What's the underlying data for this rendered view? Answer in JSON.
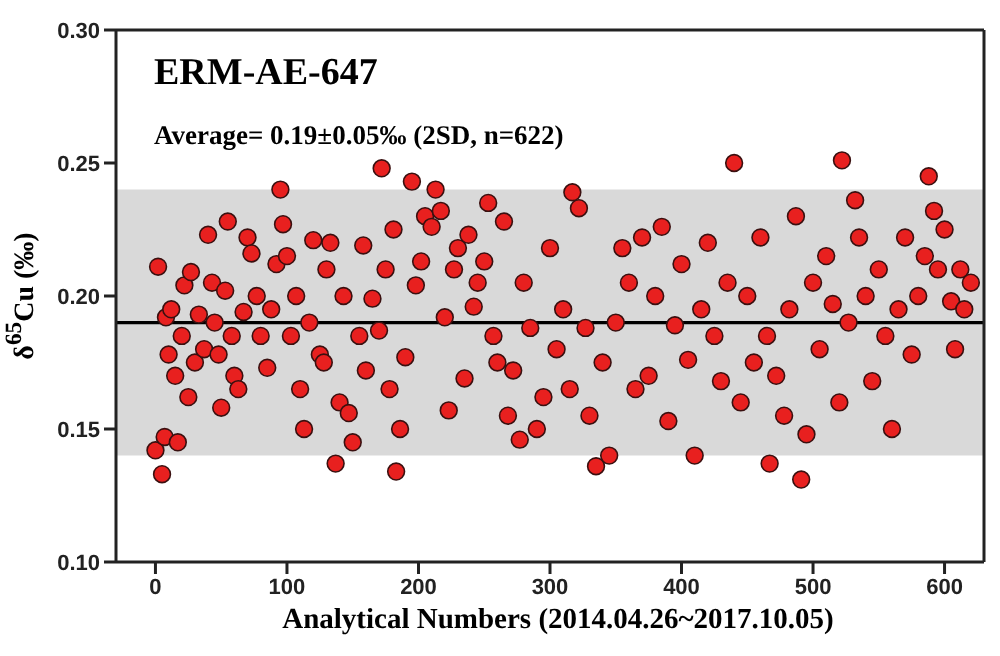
{
  "chart_data": {
    "type": "scatter",
    "annotations": [
      "ERM-AE-647",
      "Average= 0.19±0.05‰ (2SD, n=622)"
    ],
    "xlabel": "Analytical Numbers (2014.04.26~2017.10.05)",
    "ylabel": "δ$^{65}$Cu (‰)",
    "xlim": [
      -30,
      630
    ],
    "xticks": [
      0,
      100,
      200,
      300,
      400,
      500,
      600
    ],
    "ylim": [
      0.1,
      0.3
    ],
    "yticks": [
      {
        "value": 0.1,
        "label": "0.10"
      },
      {
        "value": 0.15,
        "label": "0.15"
      },
      {
        "value": 0.2,
        "label": "0.20"
      },
      {
        "value": 0.25,
        "label": "0.25"
      },
      {
        "value": 0.3,
        "label": "0.30"
      }
    ],
    "marker": "circle",
    "grid": false,
    "legend": false,
    "ref_lines": [
      {
        "axis": "y",
        "value": 0.19,
        "color": "#000000"
      }
    ],
    "bands": [
      {
        "axis": "y",
        "from": 0.14,
        "to": 0.24,
        "color": "#d9d9d9"
      }
    ],
    "series": [
      {
        "color": "#e8201f",
        "x": [
          0,
          2,
          5,
          7,
          8,
          10,
          12,
          15,
          17,
          20,
          22,
          25,
          27,
          30,
          33,
          37,
          40,
          43,
          45,
          48,
          50,
          53,
          55,
          58,
          60,
          63,
          67,
          70,
          73,
          77,
          80,
          85,
          88,
          92,
          95,
          97,
          100,
          103,
          107,
          110,
          113,
          117,
          120,
          125,
          128,
          130,
          133,
          137,
          140,
          143,
          147,
          150,
          155,
          158,
          160,
          165,
          170,
          172,
          175,
          178,
          181,
          183,
          186,
          190,
          195,
          198,
          202,
          205,
          210,
          213,
          217,
          220,
          223,
          227,
          230,
          235,
          238,
          242,
          245,
          250,
          253,
          257,
          260,
          265,
          268,
          272,
          277,
          280,
          285,
          290,
          295,
          300,
          305,
          310,
          315,
          317,
          322,
          327,
          330,
          335,
          340,
          345,
          350,
          355,
          360,
          365,
          370,
          375,
          380,
          385,
          390,
          395,
          400,
          405,
          410,
          415,
          420,
          425,
          430,
          435,
          440,
          445,
          450,
          455,
          460,
          465,
          467,
          472,
          478,
          482,
          487,
          491,
          495,
          500,
          505,
          510,
          515,
          520,
          522,
          527,
          532,
          535,
          540,
          545,
          550,
          555,
          560,
          565,
          570,
          575,
          580,
          585,
          588,
          592,
          595,
          600,
          605,
          608,
          612,
          615,
          620
        ],
        "values": [
          0.142,
          0.211,
          0.133,
          0.147,
          0.192,
          0.178,
          0.195,
          0.17,
          0.145,
          0.185,
          0.204,
          0.162,
          0.209,
          0.175,
          0.193,
          0.18,
          0.223,
          0.205,
          0.19,
          0.178,
          0.158,
          0.202,
          0.228,
          0.185,
          0.17,
          0.165,
          0.194,
          0.222,
          0.216,
          0.2,
          0.185,
          0.173,
          0.195,
          0.212,
          0.24,
          0.227,
          0.215,
          0.185,
          0.2,
          0.165,
          0.15,
          0.19,
          0.221,
          0.178,
          0.175,
          0.21,
          0.22,
          0.137,
          0.16,
          0.2,
          0.156,
          0.145,
          0.185,
          0.219,
          0.172,
          0.199,
          0.187,
          0.248,
          0.21,
          0.165,
          0.225,
          0.134,
          0.15,
          0.177,
          0.243,
          0.204,
          0.213,
          0.23,
          0.226,
          0.24,
          0.232,
          0.192,
          0.157,
          0.21,
          0.218,
          0.169,
          0.223,
          0.196,
          0.205,
          0.213,
          0.235,
          0.185,
          0.175,
          0.228,
          0.155,
          0.172,
          0.146,
          0.205,
          0.188,
          0.15,
          0.162,
          0.218,
          0.18,
          0.195,
          0.165,
          0.239,
          0.233,
          0.188,
          0.155,
          0.136,
          0.175,
          0.14,
          0.19,
          0.218,
          0.205,
          0.165,
          0.222,
          0.17,
          0.2,
          0.226,
          0.153,
          0.189,
          0.212,
          0.176,
          0.14,
          0.195,
          0.22,
          0.185,
          0.168,
          0.205,
          0.25,
          0.16,
          0.2,
          0.175,
          0.222,
          0.185,
          0.137,
          0.17,
          0.155,
          0.195,
          0.23,
          0.131,
          0.148,
          0.205,
          0.18,
          0.215,
          0.197,
          0.16,
          0.251,
          0.19,
          0.236,
          0.222,
          0.2,
          0.168,
          0.21,
          0.185,
          0.15,
          0.195,
          0.222,
          0.178,
          0.2,
          0.215,
          0.245,
          0.232,
          0.21,
          0.225,
          0.198,
          0.18,
          0.21,
          0.195,
          0.205
        ]
      }
    ]
  }
}
